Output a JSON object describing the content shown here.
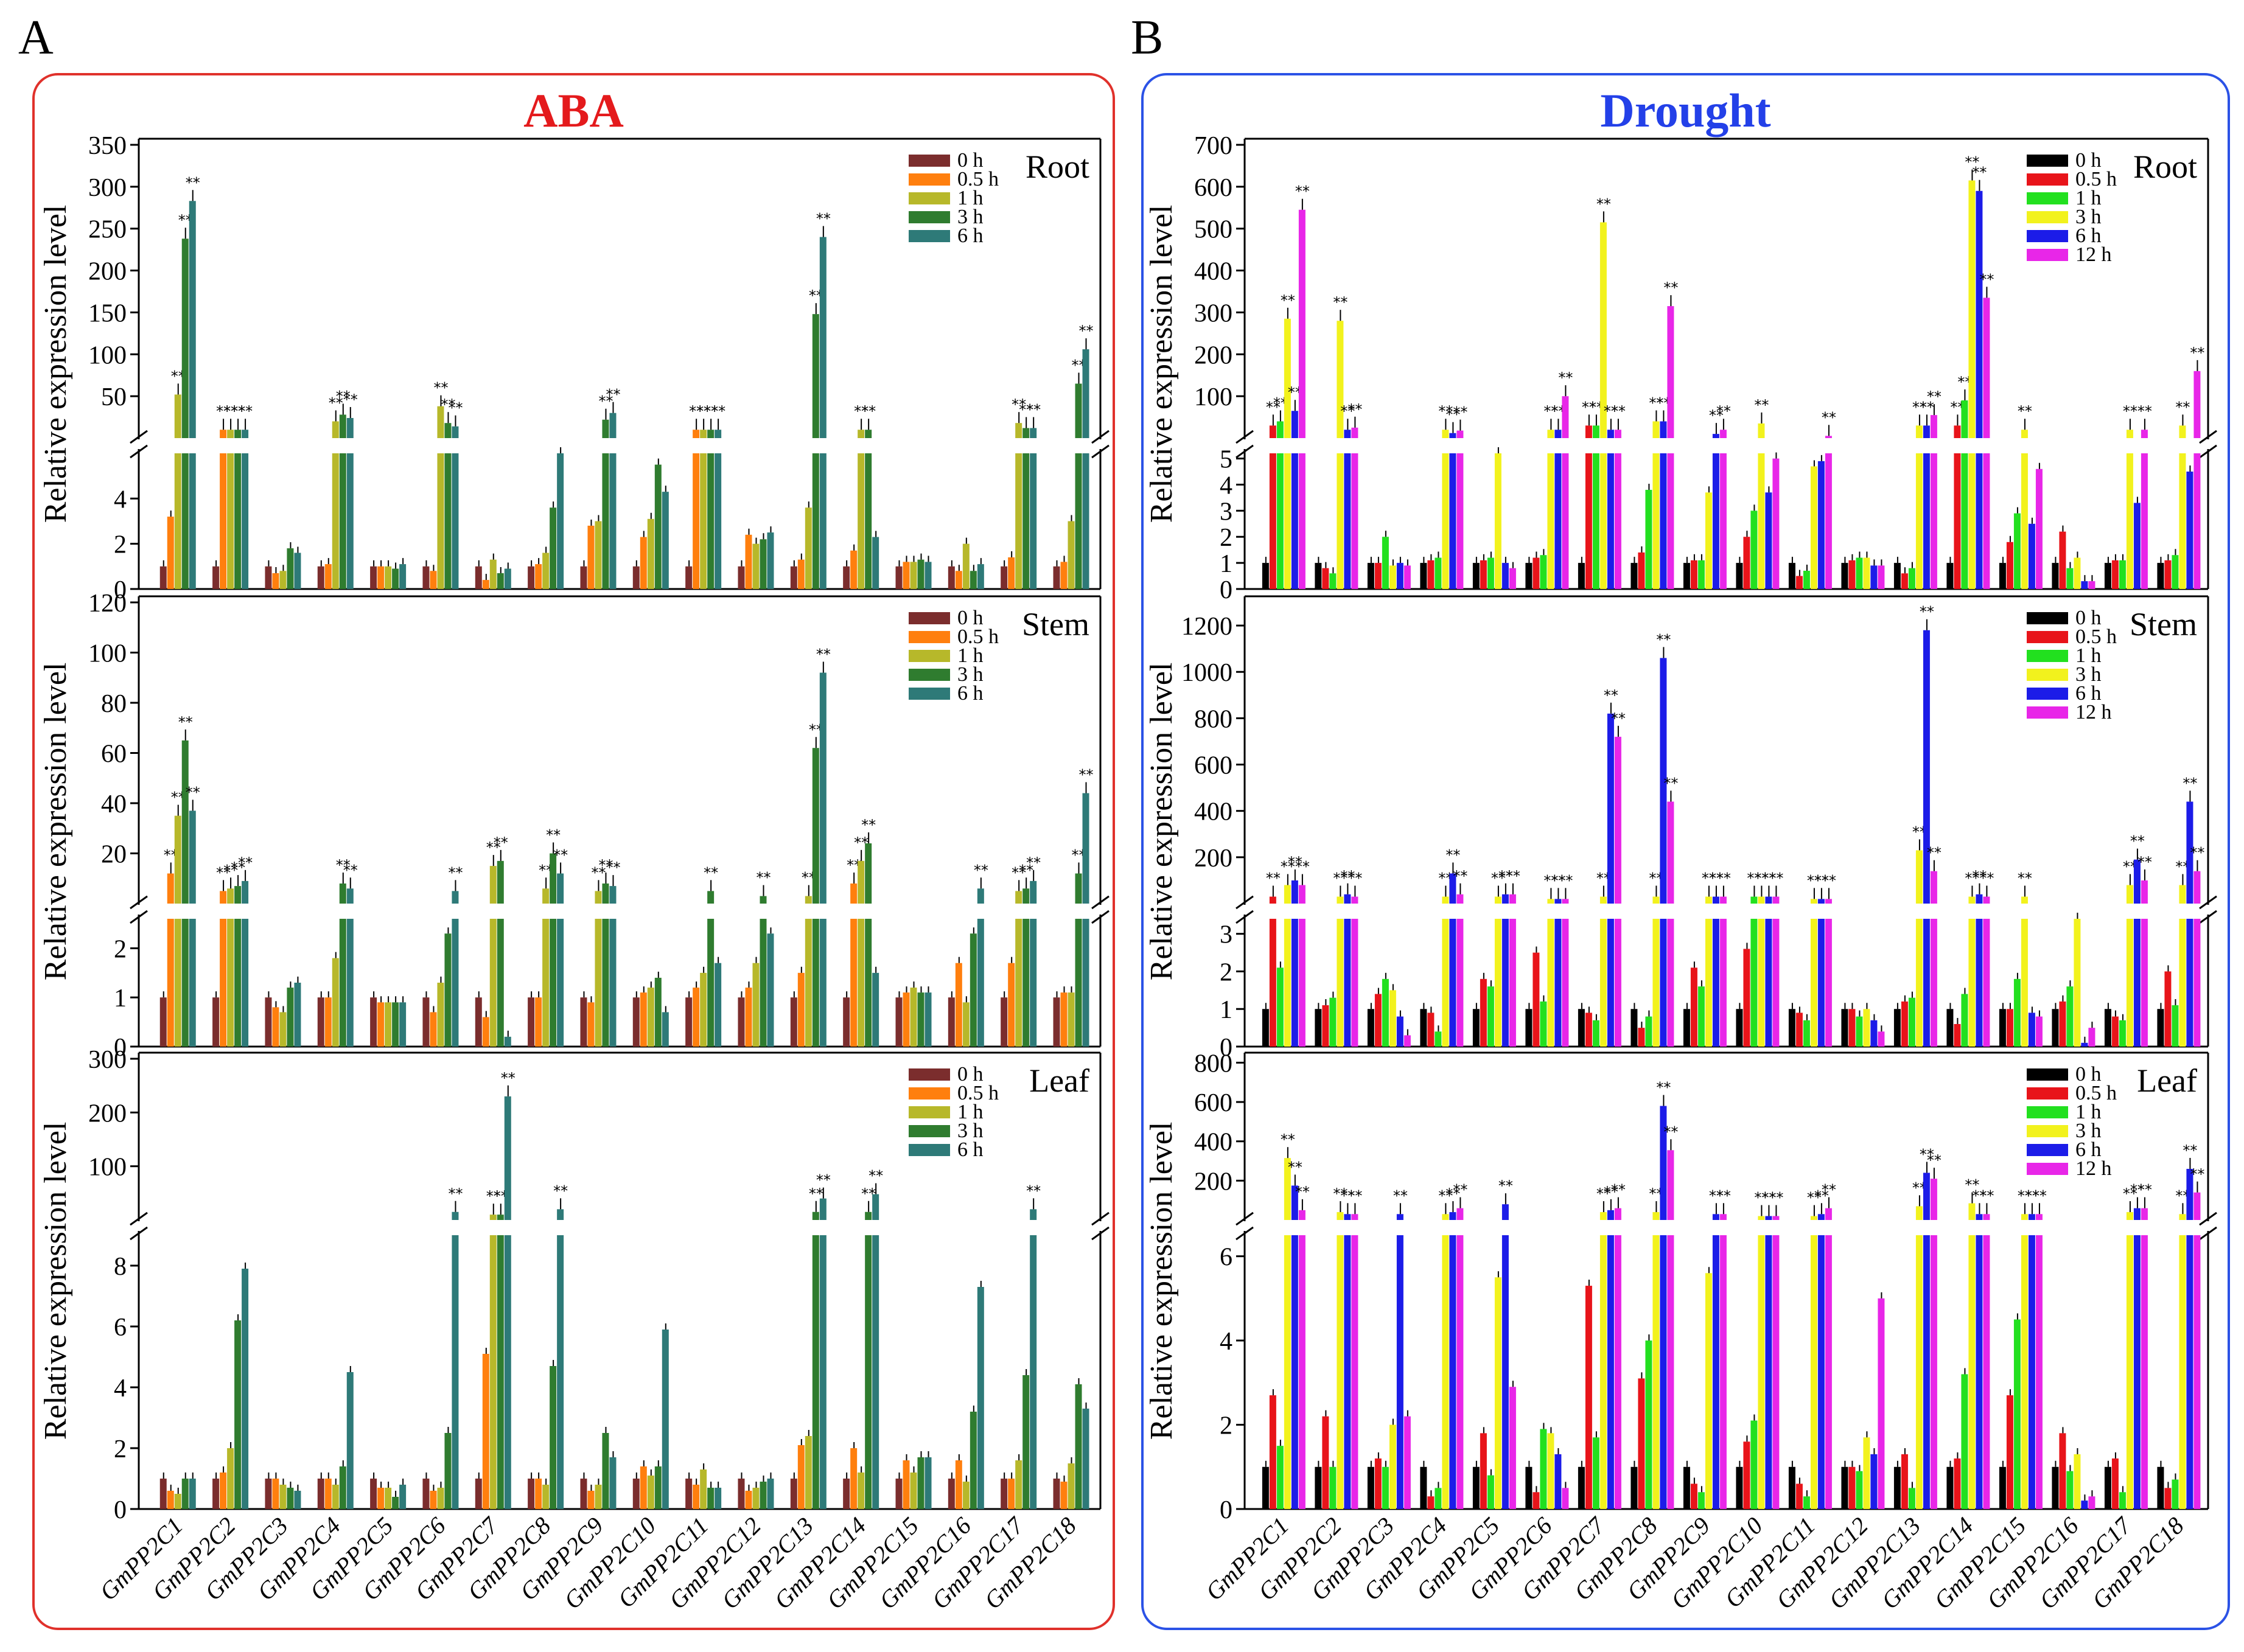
{
  "figure": {
    "panel_a_label": "A",
    "panel_b_label": "B",
    "panel_a_title": "ABA",
    "panel_b_title": "Drought",
    "ylabel": "Relative expression level",
    "genes": [
      "GmPP2C1",
      "GmPP2C2",
      "GmPP2C3",
      "GmPP2C4",
      "GmPP2C5",
      "GmPP2C6",
      "GmPP2C7",
      "GmPP2C8",
      "GmPP2C9",
      "GmPP2C10",
      "GmPP2C11",
      "GmPP2C12",
      "GmPP2C13",
      "GmPP2C14",
      "GmPP2C15",
      "GmPP2C16",
      "GmPP2C17",
      "GmPP2C18"
    ],
    "colors": {
      "frame_a": "#e0312b",
      "frame_b": "#2b52e6",
      "title_a": "#e41a1c",
      "title_b": "#2340e8"
    }
  },
  "chart_data": [
    {
      "type": "bar",
      "panel": "A",
      "tissue": "Root",
      "title": "Root",
      "treatment": "ABA",
      "ylabel": "Relative expression level",
      "upper_ylim": [
        0,
        350
      ],
      "upper_ticks": [
        "50",
        "100",
        "150",
        "200",
        "250",
        "300",
        "350"
      ],
      "lower_ylim": [
        0,
        6
      ],
      "lower_ticks": [
        "0",
        "2",
        "4"
      ],
      "categories": [
        "GmPP2C1",
        "GmPP2C2",
        "GmPP2C3",
        "GmPP2C4",
        "GmPP2C5",
        "GmPP2C6",
        "GmPP2C7",
        "GmPP2C8",
        "GmPP2C9",
        "GmPP2C10",
        "GmPP2C11",
        "GmPP2C12",
        "GmPP2C13",
        "GmPP2C14",
        "GmPP2C15",
        "GmPP2C16",
        "GmPP2C17",
        "GmPP2C18"
      ],
      "series": [
        {
          "name": "0 h",
          "color": "#7b2d2d",
          "values": [
            1,
            1,
            1,
            1,
            1,
            1,
            1,
            1,
            1,
            1,
            1,
            1,
            1,
            1,
            1,
            1,
            1,
            1
          ]
        },
        {
          "name": "0.5 h",
          "color": "#ff7f0e",
          "values": [
            3.2,
            10,
            0.7,
            1.1,
            1,
            0.8,
            0.4,
            1.1,
            2.8,
            2.3,
            10,
            2.4,
            1.3,
            1.7,
            1.2,
            0.8,
            1.4,
            1.2
          ]
        },
        {
          "name": "1 h",
          "color": "#b7b82a",
          "values": [
            52,
            10,
            0.8,
            20,
            1,
            38,
            1.3,
            1.6,
            3,
            3.1,
            10,
            2.0,
            3.6,
            10,
            1.2,
            2.0,
            18,
            3.0
          ]
        },
        {
          "name": "3 h",
          "color": "#2f7c2f",
          "values": [
            238,
            10,
            1.8,
            28,
            0.9,
            18,
            0.7,
            3.6,
            22,
            5.5,
            10,
            2.2,
            148,
            10,
            1.3,
            0.8,
            12,
            65
          ]
        },
        {
          "name": "6 h",
          "color": "#2e7a78",
          "values": [
            283,
            10,
            1.6,
            24,
            1.1,
            14,
            0.9,
            6,
            30,
            4.3,
            10,
            2.5,
            240,
            2.3,
            1.2,
            1.1,
            12,
            106
          ]
        }
      ]
    },
    {
      "type": "bar",
      "panel": "A",
      "tissue": "Stem",
      "title": "Stem",
      "treatment": "ABA",
      "ylabel": "Relative expression level",
      "upper_ylim": [
        0,
        120
      ],
      "upper_ticks": [
        "20",
        "40",
        "60",
        "80",
        "100",
        "120"
      ],
      "lower_ylim": [
        0,
        2.6
      ],
      "lower_ticks": [
        "0",
        "1",
        "2"
      ],
      "categories": [
        "GmPP2C1",
        "GmPP2C2",
        "GmPP2C3",
        "GmPP2C4",
        "GmPP2C5",
        "GmPP2C6",
        "GmPP2C7",
        "GmPP2C8",
        "GmPP2C9",
        "GmPP2C10",
        "GmPP2C11",
        "GmPP2C12",
        "GmPP2C13",
        "GmPP2C14",
        "GmPP2C15",
        "GmPP2C16",
        "GmPP2C17",
        "GmPP2C18"
      ],
      "series": [
        {
          "name": "0 h",
          "color": "#7b2d2d",
          "values": [
            1,
            1,
            1,
            1,
            1,
            1,
            1,
            1,
            1,
            1,
            1,
            1,
            1,
            1,
            1,
            1,
            1,
            1
          ]
        },
        {
          "name": "0.5 h",
          "color": "#ff7f0e",
          "values": [
            12,
            5,
            0.8,
            1.0,
            0.9,
            0.7,
            0.6,
            1.0,
            0.9,
            1.1,
            1.2,
            1.2,
            1.5,
            8,
            1.1,
            1.7,
            1.7,
            1.1
          ]
        },
        {
          "name": "1 h",
          "color": "#b7b82a",
          "values": [
            35,
            6,
            0.7,
            1.8,
            0.9,
            1.3,
            15,
            6,
            5,
            1.2,
            1.5,
            1.7,
            3,
            17,
            1.2,
            0.9,
            5,
            1.1
          ]
        },
        {
          "name": "3 h",
          "color": "#2f7c2f",
          "values": [
            65,
            7,
            1.2,
            8,
            0.9,
            2.3,
            17,
            20,
            8,
            1.4,
            5,
            3,
            62,
            24,
            1.1,
            2.3,
            6,
            12
          ]
        },
        {
          "name": "6 h",
          "color": "#2e7a78",
          "values": [
            37,
            9,
            1.3,
            6,
            0.9,
            5,
            0.2,
            12,
            7,
            0.7,
            1.7,
            2.3,
            92,
            1.5,
            1.1,
            6,
            9,
            44
          ]
        }
      ]
    },
    {
      "type": "bar",
      "panel": "A",
      "tissue": "Leaf",
      "title": "Leaf",
      "treatment": "ABA",
      "ylabel": "Relative expression level",
      "upper_ylim": [
        0,
        300
      ],
      "upper_ticks": [
        "100",
        "200",
        "300"
      ],
      "lower_ylim": [
        0,
        9
      ],
      "lower_ticks": [
        "0",
        "2",
        "4",
        "6",
        "8"
      ],
      "categories": [
        "GmPP2C1",
        "GmPP2C2",
        "GmPP2C3",
        "GmPP2C4",
        "GmPP2C5",
        "GmPP2C6",
        "GmPP2C7",
        "GmPP2C8",
        "GmPP2C9",
        "GmPP2C10",
        "GmPP2C11",
        "GmPP2C12",
        "GmPP2C13",
        "GmPP2C14",
        "GmPP2C15",
        "GmPP2C16",
        "GmPP2C17",
        "GmPP2C18"
      ],
      "series": [
        {
          "name": "0 h",
          "color": "#7b2d2d",
          "values": [
            1,
            1,
            1,
            1,
            1,
            1,
            1,
            1,
            1,
            1,
            1,
            1,
            1,
            1,
            1,
            1,
            1,
            1
          ]
        },
        {
          "name": "0.5 h",
          "color": "#ff7f0e",
          "values": [
            0.6,
            1.2,
            1.0,
            1.0,
            0.7,
            0.6,
            5.1,
            1.0,
            0.6,
            1.4,
            0.8,
            0.6,
            2.1,
            2.0,
            1.6,
            1.6,
            1.0,
            0.9
          ]
        },
        {
          "name": "1 h",
          "color": "#b7b82a",
          "values": [
            0.5,
            2.0,
            0.8,
            0.8,
            0.7,
            0.7,
            10,
            0.8,
            0.8,
            1.1,
            1.3,
            0.7,
            2.4,
            1.2,
            1.2,
            0.9,
            1.6,
            1.5
          ]
        },
        {
          "name": "3 h",
          "color": "#2f7c2f",
          "values": [
            1.0,
            6.2,
            0.7,
            1.4,
            0.4,
            2.5,
            10,
            4.7,
            2.5,
            1.4,
            0.7,
            0.9,
            15,
            15,
            1.7,
            3.2,
            4.4,
            4.1
          ]
        },
        {
          "name": "6 h",
          "color": "#2e7a78",
          "values": [
            1.0,
            7.9,
            0.6,
            4.5,
            0.8,
            15,
            230,
            20,
            1.7,
            5.9,
            0.7,
            1.0,
            40,
            48,
            1.7,
            7.3,
            20,
            3.3
          ]
        }
      ]
    },
    {
      "type": "bar",
      "panel": "B",
      "tissue": "Root",
      "title": "Root",
      "treatment": "Drought",
      "ylabel": "Relative expression level",
      "upper_ylim": [
        0,
        700
      ],
      "upper_ticks": [
        "100",
        "200",
        "300",
        "400",
        "500",
        "600",
        "700"
      ],
      "lower_ylim": [
        0,
        5.2
      ],
      "lower_ticks": [
        "0",
        "1",
        "2",
        "3",
        "4",
        "5"
      ],
      "categories": [
        "GmPP2C1",
        "GmPP2C2",
        "GmPP2C3",
        "GmPP2C4",
        "GmPP2C5",
        "GmPP2C6",
        "GmPP2C7",
        "GmPP2C8",
        "GmPP2C9",
        "GmPP2C10",
        "GmPP2C11",
        "GmPP2C12",
        "GmPP2C13",
        "GmPP2C14",
        "GmPP2C15",
        "GmPP2C16",
        "GmPP2C17",
        "GmPP2C18"
      ],
      "series": [
        {
          "name": "0 h",
          "color": "#000000",
          "values": [
            1,
            1,
            1,
            1,
            1,
            1,
            1,
            1,
            1,
            1,
            1,
            1,
            1,
            1,
            1,
            1,
            1,
            1
          ]
        },
        {
          "name": "0.5 h",
          "color": "#e8141a",
          "values": [
            30,
            0.8,
            1.0,
            1.1,
            1.1,
            1.2,
            30,
            1.4,
            1.1,
            2.0,
            0.5,
            1.1,
            0.6,
            30,
            1.8,
            2.2,
            1.1,
            1.1
          ]
        },
        {
          "name": "1 h",
          "color": "#22e01f",
          "values": [
            40,
            0.6,
            2.0,
            1.2,
            1.2,
            1.3,
            30,
            3.8,
            1.1,
            3.0,
            0.7,
            1.2,
            0.8,
            90,
            2.9,
            0.8,
            1.1,
            1.3
          ]
        },
        {
          "name": "3 h",
          "color": "#f2f21d",
          "values": [
            285,
            280,
            0.9,
            20,
            5.2,
            20,
            515,
            40,
            3.7,
            35,
            4.7,
            1.2,
            30,
            615,
            20,
            1.2,
            20,
            30
          ]
        },
        {
          "name": "6 h",
          "color": "#1c1ce8",
          "values": [
            65,
            20,
            1.0,
            12,
            1.0,
            20,
            20,
            40,
            10,
            3.7,
            4.9,
            0.9,
            30,
            590,
            2.5,
            0.3,
            3.3,
            4.5
          ]
        },
        {
          "name": "12 h",
          "color": "#e826e8",
          "values": [
            545,
            25,
            0.9,
            18,
            0.8,
            100,
            20,
            315,
            20,
            5,
            5.3,
            0.9,
            55,
            335,
            4.6,
            0.3,
            20,
            160
          ]
        }
      ]
    },
    {
      "type": "bar",
      "panel": "B",
      "tissue": "Stem",
      "title": "Stem",
      "treatment": "Drought",
      "ylabel": "Relative expression level",
      "upper_ylim": [
        0,
        1300
      ],
      "upper_ticks": [
        "200",
        "400",
        "600",
        "800",
        "1000",
        "1200"
      ],
      "lower_ylim": [
        0,
        3.4
      ],
      "lower_ticks": [
        "0",
        "1",
        "2",
        "3"
      ],
      "categories": [
        "GmPP2C1",
        "GmPP2C2",
        "GmPP2C3",
        "GmPP2C4",
        "GmPP2C5",
        "GmPP2C6",
        "GmPP2C7",
        "GmPP2C8",
        "GmPP2C9",
        "GmPP2C10",
        "GmPP2C11",
        "GmPP2C12",
        "GmPP2C13",
        "GmPP2C14",
        "GmPP2C15",
        "GmPP2C16",
        "GmPP2C17",
        "GmPP2C18"
      ],
      "series": [
        {
          "name": "0 h",
          "color": "#000000",
          "values": [
            1,
            1,
            1,
            1,
            1,
            1,
            1,
            1,
            1,
            1,
            1,
            1,
            1,
            1,
            1,
            1,
            1,
            1
          ]
        },
        {
          "name": "0.5 h",
          "color": "#e8141a",
          "values": [
            30,
            1.1,
            1.4,
            0.9,
            1.8,
            2.5,
            0.9,
            0.5,
            2.1,
            2.6,
            0.9,
            1.0,
            1.2,
            0.6,
            1.0,
            1.2,
            0.8,
            2.0
          ]
        },
        {
          "name": "1 h",
          "color": "#22e01f",
          "values": [
            2.1,
            1.3,
            1.8,
            0.4,
            1.6,
            1.2,
            0.7,
            0.8,
            1.6,
            30,
            0.7,
            0.8,
            1.3,
            1.4,
            1.8,
            1.6,
            0.7,
            1.1
          ]
        },
        {
          "name": "3 h",
          "color": "#f2f21d",
          "values": [
            80,
            30,
            1.5,
            30,
            30,
            20,
            30,
            30,
            30,
            30,
            20,
            1.0,
            230,
            30,
            30,
            3.4,
            80,
            80
          ]
        },
        {
          "name": "6 h",
          "color": "#1c1ce8",
          "values": [
            100,
            40,
            0.8,
            130,
            40,
            20,
            820,
            1060,
            30,
            30,
            20,
            0.7,
            1180,
            40,
            0.9,
            0.1,
            190,
            440
          ]
        },
        {
          "name": "12 h",
          "color": "#e826e8",
          "values": [
            80,
            30,
            0.3,
            40,
            40,
            20,
            720,
            440,
            30,
            30,
            20,
            0.4,
            140,
            30,
            0.8,
            0.5,
            100,
            140
          ]
        }
      ]
    },
    {
      "type": "bar",
      "panel": "B",
      "tissue": "Leaf",
      "title": "Leaf",
      "treatment": "Drought",
      "ylabel": "Relative expression level",
      "upper_ylim": [
        0,
        820
      ],
      "upper_ticks": [
        "200",
        "400",
        "600",
        "800"
      ],
      "lower_ylim": [
        0,
        6.5
      ],
      "lower_ticks": [
        "0",
        "2",
        "4",
        "6"
      ],
      "categories": [
        "GmPP2C1",
        "GmPP2C2",
        "GmPP2C3",
        "GmPP2C4",
        "GmPP2C5",
        "GmPP2C6",
        "GmPP2C7",
        "GmPP2C8",
        "GmPP2C9",
        "GmPP2C10",
        "GmPP2C11",
        "GmPP2C12",
        "GmPP2C13",
        "GmPP2C14",
        "GmPP2C15",
        "GmPP2C16",
        "GmPP2C17",
        "GmPP2C18"
      ],
      "series": [
        {
          "name": "0 h",
          "color": "#000000",
          "values": [
            1,
            1,
            1,
            1,
            1,
            1,
            1,
            1,
            1,
            1,
            1,
            1,
            1,
            1,
            1,
            1,
            1,
            1
          ]
        },
        {
          "name": "0.5 h",
          "color": "#e8141a",
          "values": [
            2.7,
            2.2,
            1.2,
            0.3,
            1.8,
            0.4,
            5.3,
            3.1,
            0.6,
            1.6,
            0.6,
            1.0,
            1.3,
            1.2,
            2.7,
            1.8,
            1.2,
            0.5
          ]
        },
        {
          "name": "1 h",
          "color": "#22e01f",
          "values": [
            1.5,
            1.0,
            1.0,
            0.5,
            0.8,
            1.9,
            1.7,
            4.0,
            0.4,
            2.1,
            0.3,
            0.9,
            0.5,
            3.2,
            4.5,
            0.9,
            0.4,
            0.7
          ]
        },
        {
          "name": "3 h",
          "color": "#f2f21d",
          "values": [
            315,
            40,
            2.0,
            30,
            5.5,
            1.8,
            40,
            40,
            5.6,
            20,
            20,
            1.7,
            70,
            85,
            30,
            1.3,
            40,
            30
          ]
        },
        {
          "name": "6 h",
          "color": "#1c1ce8",
          "values": [
            175,
            30,
            30,
            40,
            80,
            1.3,
            50,
            580,
            30,
            20,
            30,
            1.3,
            240,
            30,
            30,
            0.2,
            60,
            260
          ]
        },
        {
          "name": "12 h",
          "color": "#e826e8",
          "values": [
            50,
            30,
            2.2,
            60,
            2.9,
            0.5,
            60,
            355,
            30,
            20,
            60,
            5.0,
            210,
            30,
            30,
            0.3,
            60,
            140
          ]
        }
      ]
    }
  ]
}
